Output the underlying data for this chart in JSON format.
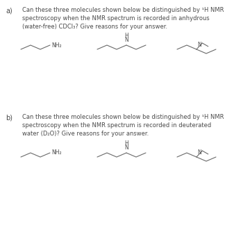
{
  "bg_color": "#ffffff",
  "text_color": "#4a4a4a",
  "label_a": "a)",
  "label_b": "b)",
  "text_a": "Can these three molecules shown below be distinguished by ¹H NMR\nspectroscopy when the NMR spectrum is recorded in anhydrous\n(water-free) CDCl₃? Give reasons for your answer.",
  "text_b": "Can these three molecules shown below be distinguished by ¹H NMR\nspectroscopy when the NMR spectrum is recorded in deuterated\nwater (D₂O)? Give reasons for your answer.",
  "font_size_label": 7.0,
  "font_size_text": 6.0,
  "font_size_mol": 5.5,
  "line_color": "#6a6a6a",
  "line_width": 0.8
}
